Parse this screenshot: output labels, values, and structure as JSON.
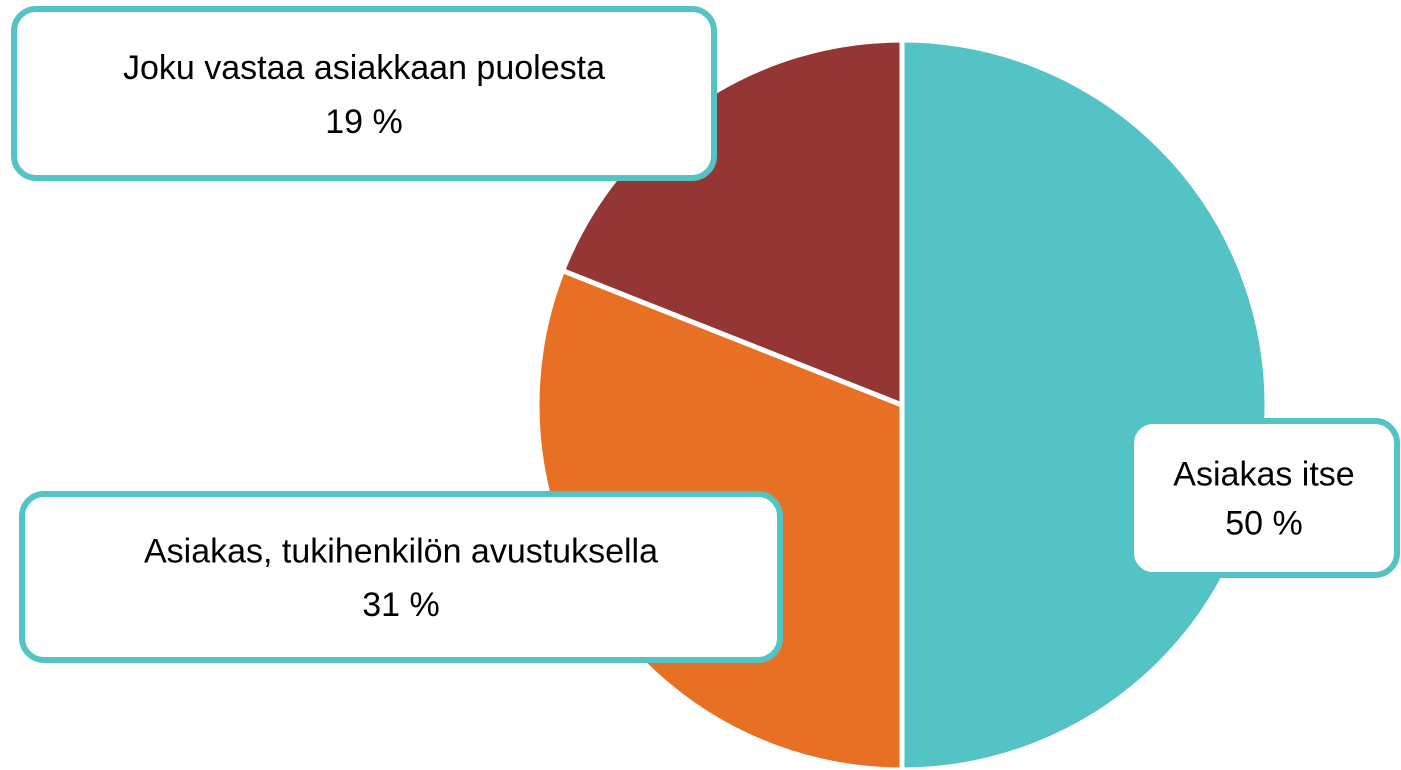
{
  "chart_data": {
    "type": "pie",
    "categories": [
      "Asiakas itse",
      "Asiakas, tukihenkilön avustuksella",
      "Joku vastaa asiakkaan puolesta"
    ],
    "values": [
      50,
      31,
      19
    ],
    "value_labels": [
      "50 %",
      "31 %",
      "19 %"
    ],
    "colors": [
      "#54c3c6",
      "#e87025",
      "#943634"
    ]
  }
}
